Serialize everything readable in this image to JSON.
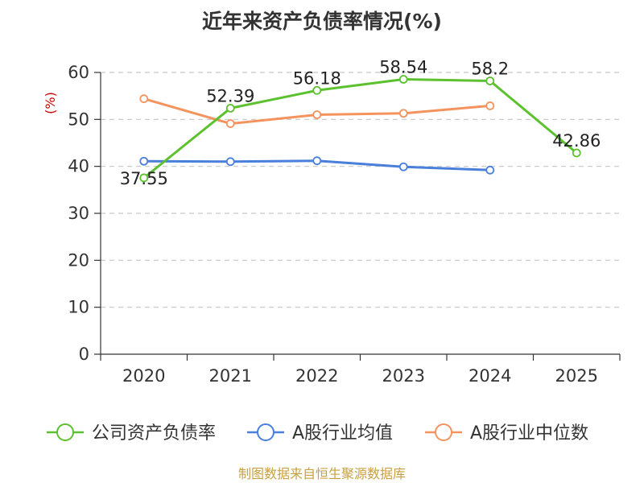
{
  "chart_data": {
    "type": "line",
    "title": "近年来资产负债率情况(%)",
    "ylabel": "(%)",
    "xlabel": "",
    "categories": [
      "2020",
      "2021",
      "2022",
      "2023",
      "2024",
      "2025"
    ],
    "ylim": [
      0,
      60
    ],
    "yticks": [
      0,
      10,
      20,
      30,
      40,
      50,
      60
    ],
    "grid": true,
    "legend_position": "bottom",
    "series": [
      {
        "name": "公司资产负债率",
        "color": "#5cc12e",
        "values": [
          37.55,
          52.39,
          56.18,
          58.54,
          58.2,
          42.86
        ],
        "labels": [
          "37.55",
          "52.39",
          "56.18",
          "58.54",
          "58.2",
          "42.86"
        ]
      },
      {
        "name": "A股行业均值",
        "color": "#4a7fdc",
        "values": [
          41.1,
          41.0,
          41.2,
          39.9,
          39.2,
          null
        ]
      },
      {
        "name": "A股行业中位数",
        "color": "#f5935e",
        "values": [
          54.4,
          49.1,
          51.0,
          51.3,
          52.9,
          null
        ]
      }
    ]
  },
  "footer": {
    "source": "制图数据来自恒生聚源数据库"
  }
}
